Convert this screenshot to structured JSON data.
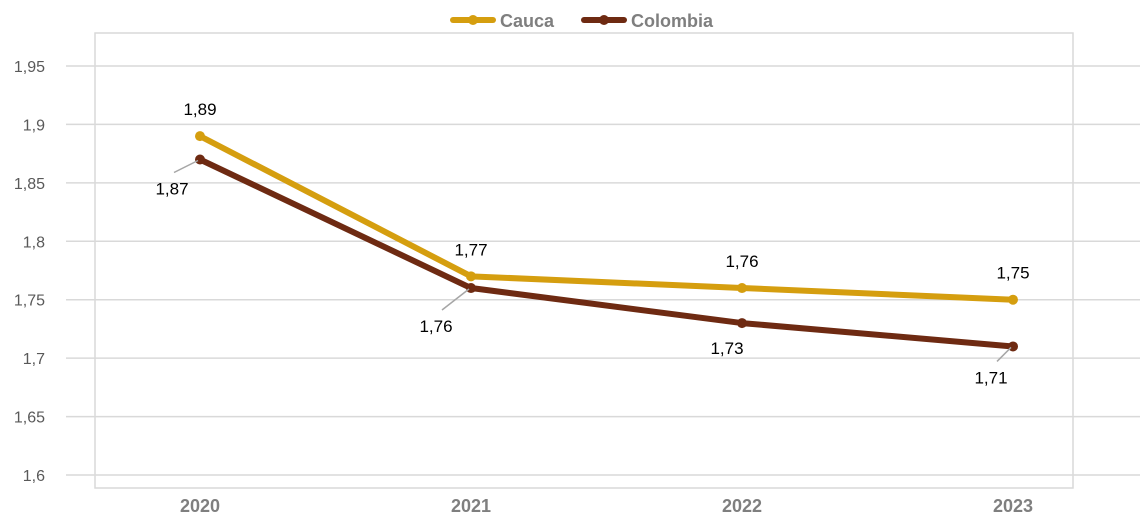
{
  "chart_data": {
    "type": "line",
    "categories": [
      "2020",
      "2021",
      "2022",
      "2023"
    ],
    "series": [
      {
        "name": "Cauca",
        "color": "#D59E0F",
        "values": [
          1.89,
          1.77,
          1.76,
          1.75
        ],
        "labels": [
          "1,89",
          "1,77",
          "1,76",
          "1,75"
        ]
      },
      {
        "name": "Colombia",
        "color": "#6E2A12",
        "values": [
          1.87,
          1.76,
          1.73,
          1.71
        ],
        "labels": [
          "1,87",
          "1,76",
          "1,73",
          "1,71"
        ]
      }
    ],
    "ylim": [
      1.6,
      1.95
    ],
    "yticks": [
      1.6,
      1.65,
      1.7,
      1.75,
      1.8,
      1.85,
      1.9,
      1.95
    ],
    "ytick_labels": [
      "1,6",
      "1,65",
      "1,7",
      "1,75",
      "1,8",
      "1,85",
      "1,9",
      "1,95"
    ],
    "grid": true,
    "legend_position": "top-center",
    "title": "",
    "xlabel": "",
    "ylabel": ""
  }
}
